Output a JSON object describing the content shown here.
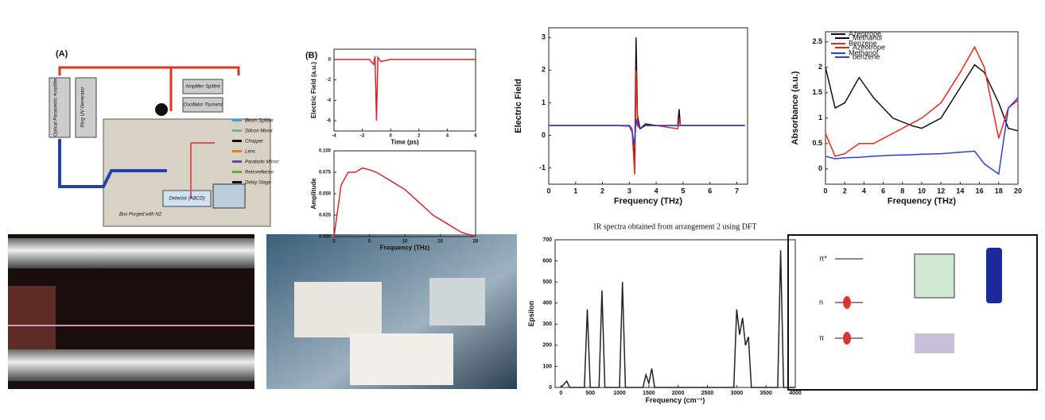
{
  "diagram_a": {
    "label": "(A)",
    "parts": [
      "Optical Parametric Amplifier",
      "Ring UV Generator",
      "Amplifier Spitfire",
      "Oscillator Tsunami",
      "Detector (ABCD)",
      "Box Purged with N2"
    ],
    "legend": [
      "Beam Splitter",
      "Silicon Mirror",
      "Chopper",
      "Lens",
      "Parabolic Mirror",
      "Retroreflector",
      "Delay Stage"
    ]
  },
  "spectra_b": {
    "label": "(B)",
    "charts": [
      {
        "type": "line",
        "ylabel": "Electric Field (a.u.)",
        "xlabel": "Time (ps)",
        "x": [
          -4,
          -1.5,
          -1.2,
          -1.1,
          -1.0,
          -0.9,
          -0.7,
          0,
          6
        ],
        "xlim": [
          -4,
          6
        ],
        "ylim": [
          -7,
          1
        ],
        "xticks": [
          -4,
          -2,
          0,
          2,
          4,
          6
        ],
        "yticks": [
          -6,
          -4,
          -2,
          0
        ],
        "color": "#d62728",
        "values": [
          0,
          0,
          -0.5,
          0.3,
          -6,
          0.2,
          -0.2,
          0,
          0
        ]
      },
      {
        "type": "line",
        "ylabel": "Amplitude",
        "xlabel": "Frequency (THz)",
        "x": [
          0,
          1,
          2,
          3,
          4,
          5,
          6,
          8,
          10,
          12,
          14,
          16,
          18,
          20
        ],
        "xlim": [
          0,
          20
        ],
        "ylim": [
          0,
          0.1
        ],
        "xticks": [
          0,
          5,
          10,
          15,
          20
        ],
        "yticks": [
          {
            "value": 0,
            "label": "0.000"
          },
          {
            "value": 0.025,
            "label": "0.025"
          },
          {
            "value": 0.05,
            "label": "0.050"
          },
          {
            "value": 0.075,
            "label": "0.075"
          },
          {
            "value": 0.1,
            "label": "0.100"
          }
        ],
        "color": "#d62728",
        "values": [
          0,
          0.06,
          0.075,
          0.075,
          0.08,
          0.078,
          0.075,
          0.065,
          0.055,
          0.04,
          0.025,
          0.015,
          0.005,
          0
        ]
      }
    ]
  },
  "charts": [
    {
      "type": "line",
      "ylabel": "Electric Field",
      "xlabel": "Frequency (THz)",
      "legend": "upper right",
      "x": [
        0,
        2.5,
        3.0,
        3.1,
        3.2,
        3.25,
        3.3,
        3.4,
        3.6,
        4,
        4.8,
        4.85,
        4.9,
        5,
        7.3
      ],
      "xlim": [
        0,
        7.4
      ],
      "ylim": [
        -1.5,
        3.3
      ],
      "xticks": [
        0,
        1,
        2,
        3,
        4,
        5,
        6,
        7
      ],
      "yticks": [
        -1,
        0,
        1,
        2,
        3
      ],
      "series": [
        {
          "name": "Azeotrope",
          "color": "#111111",
          "values": [
            0.3,
            0.3,
            0.3,
            0.2,
            -0.8,
            3.0,
            0.6,
            0.2,
            0.35,
            0.3,
            0.3,
            0.8,
            0.3,
            0.3,
            0.3
          ]
        },
        {
          "name": "Benzene",
          "color": "#e8261c",
          "values": [
            0.3,
            0.3,
            0.3,
            0.2,
            -1.2,
            2.0,
            0.4,
            0.2,
            0.3,
            0.3,
            0.2,
            0.5,
            0.3,
            0.3,
            0.3
          ]
        },
        {
          "name": "Methanol",
          "color": "#2c3fd6",
          "values": [
            0.3,
            0.3,
            0.28,
            0.1,
            -0.3,
            0.5,
            0.3,
            0.2,
            0.3,
            0.3,
            0.3,
            0.3,
            0.3,
            0.3,
            0.3
          ]
        }
      ]
    },
    {
      "type": "line",
      "ylabel": "Absorbance (a.u.)",
      "xlabel": "Frequency (THz)",
      "legend": "upper left",
      "x": [
        0,
        1,
        2,
        3.5,
        5,
        7,
        9,
        10,
        12,
        14,
        15.5,
        16.5,
        18,
        19,
        20
      ],
      "xlim": [
        0,
        20
      ],
      "ylim": [
        -0.3,
        2.7
      ],
      "xticks": [
        0,
        2,
        4,
        6,
        8,
        10,
        12,
        14,
        16,
        18,
        20
      ],
      "yticks": [
        0,
        0.5,
        1,
        1.5,
        2,
        2.5
      ],
      "series": [
        {
          "name": "Methanol",
          "color": "#111111",
          "values": [
            2.0,
            1.2,
            1.3,
            1.8,
            1.4,
            1.0,
            0.85,
            0.8,
            1.0,
            1.6,
            2.05,
            1.9,
            1.3,
            0.8,
            0.75
          ]
        },
        {
          "name": "Azeotrope",
          "color": "#e8261c",
          "values": [
            0.7,
            0.25,
            0.3,
            0.5,
            0.5,
            0.7,
            0.9,
            1.0,
            1.3,
            1.9,
            2.4,
            2.0,
            0.6,
            1.2,
            1.35
          ]
        },
        {
          "name": "benzene",
          "color": "#2c3fd6",
          "values": [
            0.25,
            0.2,
            0.22,
            0.23,
            0.25,
            0.27,
            0.28,
            0.29,
            0.3,
            0.33,
            0.35,
            0.1,
            -0.1,
            1.2,
            1.4
          ]
        }
      ]
    },
    {
      "type": "line",
      "title": "IR spectra obtained from arrangement 2 using DFT",
      "ylabel": "Epsilon",
      "xlabel": "Frequency (cm⁻¹)",
      "x": [
        0,
        100,
        150,
        200,
        400,
        450,
        500,
        650,
        700,
        750,
        1000,
        1050,
        1100,
        1400,
        1450,
        1500,
        1550,
        1600,
        2950,
        3000,
        3050,
        3100,
        3150,
        3200,
        3250,
        3700,
        3750,
        3800,
        4000
      ],
      "xlim": [
        -100,
        4000
      ],
      "ylim": [
        0,
        700
      ],
      "xticks": [
        0,
        500,
        1000,
        1500,
        2000,
        2500,
        3000,
        3500,
        4000
      ],
      "yticks": [
        0,
        100,
        200,
        300,
        400,
        500,
        600,
        700
      ],
      "color": "#222222",
      "values": [
        0,
        30,
        0,
        0,
        0,
        370,
        0,
        0,
        460,
        0,
        0,
        500,
        0,
        0,
        60,
        20,
        90,
        0,
        0,
        370,
        250,
        330,
        200,
        240,
        0,
        0,
        650,
        0,
        0
      ]
    }
  ],
  "energy_diagram": {
    "levels": [
      "π*",
      "n",
      "π"
    ]
  }
}
